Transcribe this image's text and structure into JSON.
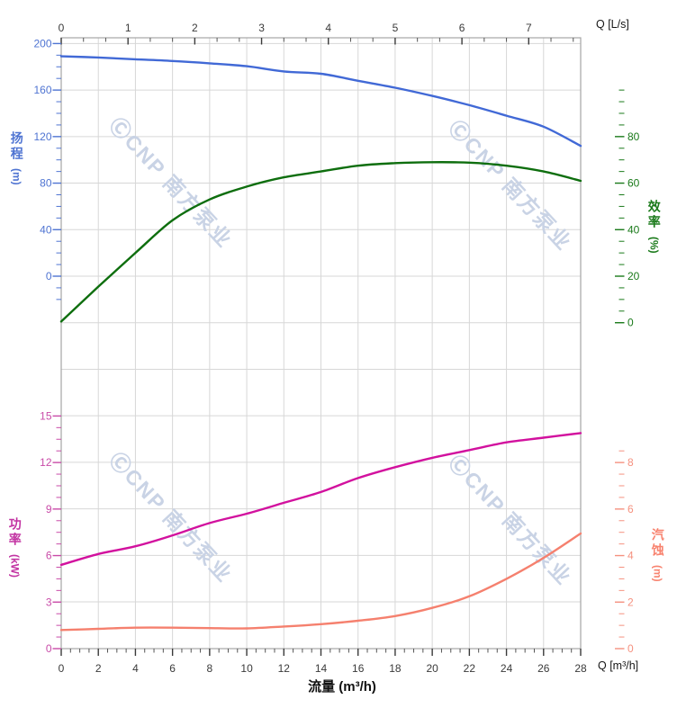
{
  "watermark": {
    "text": "ⒸCNP 南方泵业",
    "color": "#c9d3e5"
  },
  "axes": {
    "top": {
      "unit_label": "Q [L/s]",
      "ticks": [
        0,
        1,
        2,
        3,
        4,
        5,
        6,
        7
      ],
      "color": "#3a3a3a"
    },
    "bottom": {
      "unit_label": "Q [m³/h]",
      "title": "流量 (m³/h)",
      "ticks": [
        0,
        2,
        4,
        6,
        8,
        10,
        12,
        14,
        16,
        18,
        20,
        22,
        24,
        26,
        28
      ],
      "color": "#3a3a3a"
    },
    "head": {
      "title": "扬程",
      "unit": "(m)",
      "ticks": [
        200,
        160,
        120,
        80,
        40,
        0
      ],
      "color": "#4f74d2"
    },
    "efficiency": {
      "title": "效率",
      "unit": "(%)",
      "ticks": [
        80,
        60,
        40,
        20,
        0
      ],
      "color": "#1a7a1a"
    },
    "power": {
      "title": "功率",
      "unit": "(kW)",
      "ticks": [
        15,
        12,
        9,
        6,
        3,
        0
      ],
      "color": "#c94ba8"
    },
    "npsh": {
      "title": "汽蚀",
      "unit": "(m)",
      "ticks": [
        8,
        6,
        4,
        2,
        0
      ],
      "color": "#f5917f"
    }
  },
  "chart_data": {
    "type": "line",
    "title": "",
    "xlabel": "流量 (m³/h)",
    "x_secondary_label": "Q [L/s]",
    "x": [
      0,
      2,
      4,
      6,
      8,
      10,
      12,
      14,
      16,
      18,
      20,
      22,
      24,
      26,
      28
    ],
    "x_range_m3h": [
      0,
      28
    ],
    "x_range_Ls": [
      0,
      7.78
    ],
    "grid": true,
    "legend": "none",
    "series": [
      {
        "name": "扬程 (Head)",
        "unit": "m",
        "axis": "head",
        "axis_range": [
          0,
          200
        ],
        "color": "#4169d6",
        "values": [
          189,
          188,
          186.5,
          185,
          183,
          180.5,
          176,
          174,
          168,
          162,
          155,
          147,
          138,
          128.5,
          112
        ]
      },
      {
        "name": "效率 (Efficiency)",
        "unit": "%",
        "axis": "efficiency",
        "axis_range": [
          0,
          80
        ],
        "color": "#0e6e0e",
        "values": [
          0.5,
          15.5,
          30,
          44,
          53,
          58.5,
          62.5,
          65,
          67.5,
          68.6,
          69,
          68.8,
          67.5,
          65,
          61
        ]
      },
      {
        "name": "功率 (Power)",
        "unit": "kW",
        "axis": "power",
        "axis_range": [
          0,
          15
        ],
        "color": "#d2119e",
        "values": [
          5.4,
          6.1,
          6.6,
          7.3,
          8.1,
          8.7,
          9.4,
          10.1,
          11,
          11.7,
          12.3,
          12.8,
          13.3,
          13.6,
          13.9
        ]
      },
      {
        "name": "汽蚀 (NPSH)",
        "unit": "m",
        "axis": "npsh",
        "axis_range": [
          0,
          8
        ],
        "color": "#f5806e",
        "values": [
          0.8,
          0.85,
          0.9,
          0.9,
          0.88,
          0.87,
          0.95,
          1.05,
          1.2,
          1.4,
          1.75,
          2.25,
          3,
          3.9,
          4.95
        ]
      }
    ]
  }
}
